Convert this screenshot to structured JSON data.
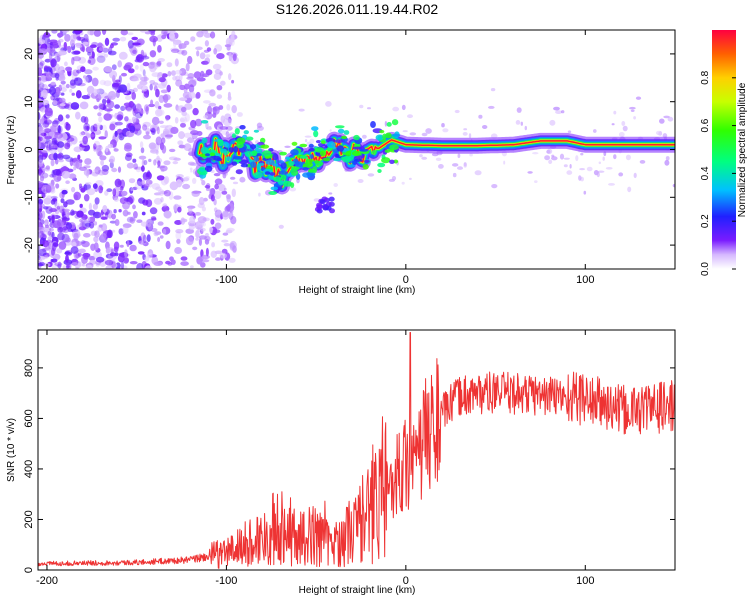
{
  "title": "S126.2026.011.19.44.R02",
  "chart_data": [
    {
      "type": "heatmap",
      "name": "spectrogram",
      "xlabel": "Height of straight line (km)",
      "ylabel": "Frequency (Hz)",
      "xlim": [
        -205,
        150
      ],
      "ylim": [
        -25,
        25
      ],
      "xticks": [
        -200,
        -100,
        0,
        100
      ],
      "yticks": [
        -20,
        -10,
        0,
        10,
        20
      ],
      "colorbar": {
        "label": "Normalized spectral amplitude",
        "range": [
          0,
          1
        ],
        "ticks": [
          0.0,
          0.2,
          0.4,
          0.6,
          0.8
        ]
      },
      "ridge": {
        "description": "dominant frequency vs height",
        "x": [
          -115,
          -100,
          -90,
          -80,
          -70,
          -60,
          -50,
          -40,
          -30,
          -20,
          -12,
          -8,
          0,
          20,
          40,
          60,
          75,
          90,
          100,
          150
        ],
        "y": [
          -1,
          0,
          0,
          -3,
          -5,
          -2,
          -2,
          0,
          -1,
          -1,
          1,
          2,
          1,
          0.8,
          0.8,
          1,
          1.8,
          1.8,
          1,
          1
        ]
      }
    },
    {
      "type": "line",
      "name": "snr",
      "xlabel": "Height of straight line (km)",
      "ylabel": "SNR (10 * v/v)",
      "xlim": [
        -205,
        150
      ],
      "ylim": [
        0,
        950
      ],
      "xticks": [
        -200,
        -100,
        0,
        100
      ],
      "yticks": [
        0,
        200,
        400,
        600,
        800
      ],
      "color": "#ee3333",
      "envelope": {
        "x": [
          -205,
          -150,
          -120,
          -100,
          -80,
          -70,
          -60,
          -50,
          -40,
          -30,
          -20,
          -15,
          -10,
          -5,
          0,
          5,
          10,
          20,
          30,
          40,
          60,
          80,
          100,
          120,
          150
        ],
        "y": [
          25,
          30,
          40,
          70,
          130,
          180,
          120,
          140,
          90,
          160,
          220,
          300,
          330,
          390,
          420,
          400,
          520,
          620,
          690,
          700,
          700,
          690,
          680,
          630,
          650
        ]
      }
    }
  ]
}
